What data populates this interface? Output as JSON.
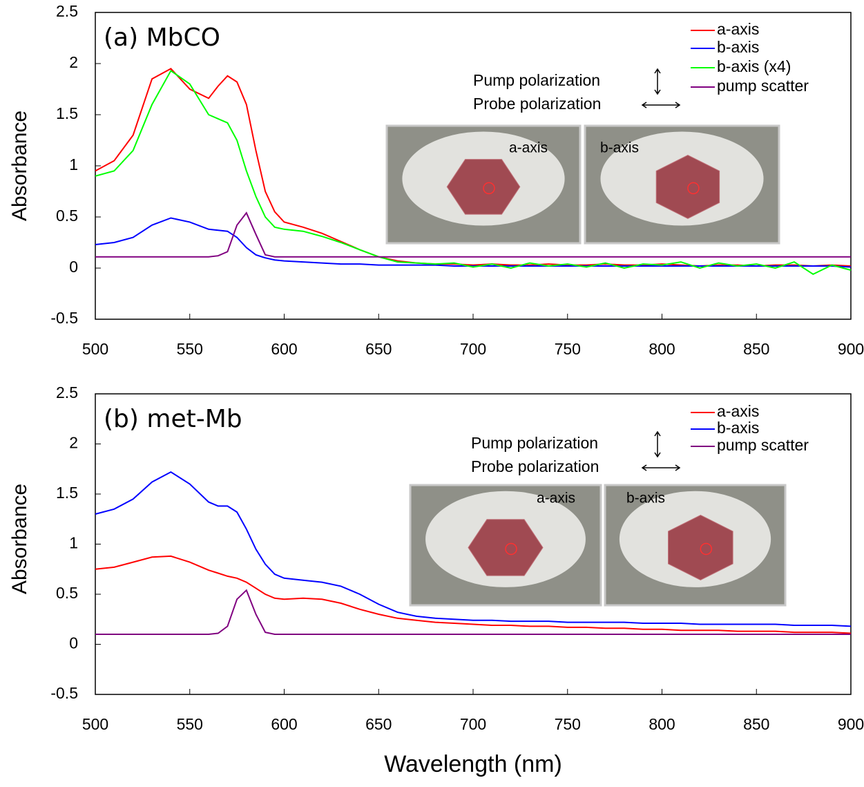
{
  "chart_data": [
    {
      "type": "line",
      "title": "(a) MbCO",
      "ylabel": "Absorbance",
      "x": [
        500,
        510,
        520,
        530,
        540,
        550,
        560,
        565,
        570,
        575,
        580,
        585,
        590,
        595,
        600,
        610,
        620,
        630,
        640,
        650,
        660,
        670,
        680,
        690,
        700,
        710,
        720,
        730,
        740,
        750,
        760,
        770,
        780,
        790,
        800,
        810,
        820,
        830,
        840,
        850,
        860,
        870,
        880,
        890,
        900
      ],
      "series": [
        {
          "name": "a-axis",
          "color": "#ff0000",
          "values": [
            0.95,
            1.05,
            1.3,
            1.85,
            1.95,
            1.75,
            1.66,
            1.78,
            1.88,
            1.82,
            1.6,
            1.15,
            0.75,
            0.55,
            0.45,
            0.4,
            0.34,
            0.26,
            0.18,
            0.11,
            0.07,
            0.05,
            0.04,
            0.04,
            0.03,
            0.04,
            0.03,
            0.03,
            0.04,
            0.03,
            0.03,
            0.04,
            0.03,
            0.03,
            0.04,
            0.03,
            0.02,
            0.03,
            0.03,
            0.02,
            0.03,
            0.03,
            0.02,
            0.03,
            0.02
          ]
        },
        {
          "name": "b-axis",
          "color": "#0000ff",
          "values": [
            0.23,
            0.25,
            0.3,
            0.42,
            0.49,
            0.45,
            0.38,
            0.37,
            0.36,
            0.3,
            0.2,
            0.13,
            0.1,
            0.08,
            0.07,
            0.06,
            0.05,
            0.04,
            0.04,
            0.03,
            0.03,
            0.03,
            0.03,
            0.02,
            0.02,
            0.02,
            0.02,
            0.02,
            0.02,
            0.02,
            0.02,
            0.02,
            0.02,
            0.02,
            0.02,
            0.02,
            0.02,
            0.02,
            0.02,
            0.02,
            0.02,
            0.02,
            0.02,
            0.02,
            0.01
          ]
        },
        {
          "name": "b-axis (x4)",
          "color": "#00ff00",
          "values": [
            0.9,
            0.95,
            1.15,
            1.6,
            1.93,
            1.8,
            1.5,
            1.46,
            1.42,
            1.25,
            0.95,
            0.7,
            0.5,
            0.4,
            0.38,
            0.36,
            0.31,
            0.25,
            0.18,
            0.11,
            0.06,
            0.05,
            0.04,
            0.05,
            0.01,
            0.04,
            0.0,
            0.05,
            0.02,
            0.04,
            0.01,
            0.05,
            0.0,
            0.04,
            0.03,
            0.06,
            0.0,
            0.05,
            0.02,
            0.04,
            0.0,
            0.06,
            -0.06,
            0.03,
            -0.02
          ]
        },
        {
          "name": "pump scatter",
          "color": "#800080",
          "values": [
            0.11,
            0.11,
            0.11,
            0.11,
            0.11,
            0.11,
            0.11,
            0.12,
            0.16,
            0.42,
            0.54,
            0.33,
            0.13,
            0.11,
            0.11,
            0.11,
            0.11,
            0.11,
            0.11,
            0.11,
            0.11,
            0.11,
            0.11,
            0.11,
            0.11,
            0.11,
            0.11,
            0.11,
            0.11,
            0.11,
            0.11,
            0.11,
            0.11,
            0.11,
            0.11,
            0.11,
            0.11,
            0.11,
            0.11,
            0.11,
            0.11,
            0.11,
            0.11,
            0.11,
            0.11
          ]
        }
      ],
      "xlim": [
        500,
        900
      ],
      "ylim": [
        -0.5,
        2.5
      ],
      "xticks": [
        500,
        550,
        600,
        650,
        700,
        750,
        800,
        850,
        900
      ],
      "yticks": [
        -0.5,
        0,
        0.5,
        1,
        1.5,
        2,
        2.5
      ],
      "annotations": {
        "pump": "Pump polarization",
        "probe": "Probe polarization",
        "inset_labels": [
          "a-axis",
          "b-axis"
        ]
      }
    },
    {
      "type": "line",
      "title": "(b) met-Mb",
      "ylabel": "Absorbance",
      "xlabel": "Wavelength (nm)",
      "x": [
        500,
        510,
        520,
        530,
        540,
        550,
        560,
        565,
        570,
        575,
        580,
        585,
        590,
        595,
        600,
        610,
        620,
        630,
        640,
        650,
        660,
        670,
        680,
        690,
        700,
        710,
        720,
        730,
        740,
        750,
        760,
        770,
        780,
        790,
        800,
        810,
        820,
        830,
        840,
        850,
        860,
        870,
        880,
        890,
        900
      ],
      "series": [
        {
          "name": "a-axis",
          "color": "#ff0000",
          "values": [
            0.75,
            0.77,
            0.82,
            0.87,
            0.88,
            0.82,
            0.74,
            0.71,
            0.68,
            0.66,
            0.62,
            0.56,
            0.5,
            0.46,
            0.45,
            0.46,
            0.45,
            0.41,
            0.35,
            0.3,
            0.26,
            0.24,
            0.22,
            0.21,
            0.2,
            0.19,
            0.19,
            0.18,
            0.18,
            0.17,
            0.17,
            0.16,
            0.16,
            0.15,
            0.15,
            0.14,
            0.14,
            0.14,
            0.13,
            0.13,
            0.13,
            0.12,
            0.12,
            0.12,
            0.11
          ]
        },
        {
          "name": "b-axis",
          "color": "#0000ff",
          "values": [
            1.3,
            1.35,
            1.45,
            1.62,
            1.72,
            1.6,
            1.42,
            1.38,
            1.38,
            1.32,
            1.15,
            0.95,
            0.8,
            0.7,
            0.66,
            0.64,
            0.62,
            0.58,
            0.5,
            0.4,
            0.32,
            0.28,
            0.26,
            0.25,
            0.24,
            0.24,
            0.23,
            0.23,
            0.23,
            0.22,
            0.22,
            0.22,
            0.22,
            0.21,
            0.21,
            0.21,
            0.2,
            0.2,
            0.2,
            0.2,
            0.2,
            0.19,
            0.19,
            0.19,
            0.18
          ]
        },
        {
          "name": "pump scatter",
          "color": "#800080",
          "values": [
            0.1,
            0.1,
            0.1,
            0.1,
            0.1,
            0.1,
            0.1,
            0.11,
            0.18,
            0.45,
            0.54,
            0.3,
            0.12,
            0.1,
            0.1,
            0.1,
            0.1,
            0.1,
            0.1,
            0.1,
            0.1,
            0.1,
            0.1,
            0.1,
            0.1,
            0.1,
            0.1,
            0.1,
            0.1,
            0.1,
            0.1,
            0.1,
            0.1,
            0.1,
            0.1,
            0.1,
            0.1,
            0.1,
            0.1,
            0.1,
            0.1,
            0.1,
            0.1,
            0.1,
            0.1
          ]
        }
      ],
      "xlim": [
        500,
        900
      ],
      "ylim": [
        -0.5,
        2.5
      ],
      "xticks": [
        500,
        550,
        600,
        650,
        700,
        750,
        800,
        850,
        900
      ],
      "yticks": [
        -0.5,
        0,
        0.5,
        1,
        1.5,
        2,
        2.5
      ],
      "annotations": {
        "pump": "Pump polarization",
        "probe": "Probe polarization",
        "inset_labels": [
          "a-axis",
          "b-axis"
        ]
      }
    }
  ]
}
